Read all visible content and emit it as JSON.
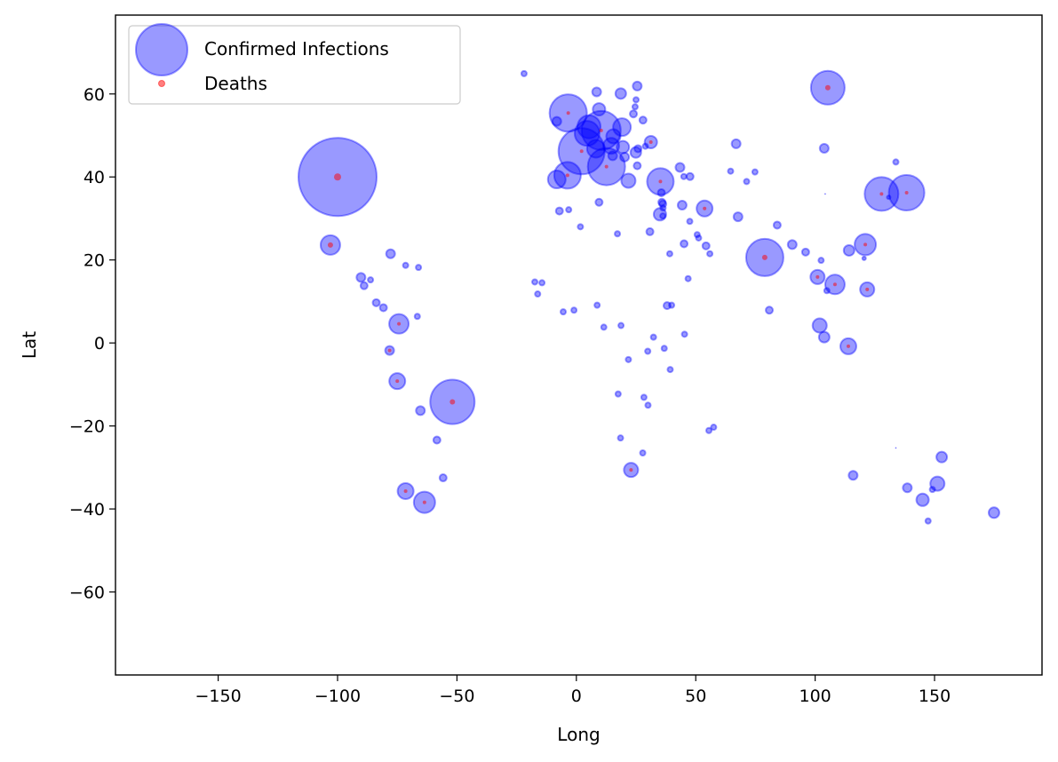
{
  "chart_data": {
    "type": "scatter",
    "xlabel": "Long",
    "ylabel": "Lat",
    "xlim": [
      -193,
      195
    ],
    "ylim": [
      -80,
      79
    ],
    "x_ticks": [
      -150,
      -100,
      -50,
      0,
      50,
      100,
      150
    ],
    "y_ticks": [
      -60,
      -40,
      -20,
      0,
      20,
      40,
      60
    ],
    "x_tick_labels": [
      "−150",
      "−100",
      "−50",
      "0",
      "50",
      "100",
      "150"
    ],
    "y_tick_labels": [
      "−60",
      "−40",
      "−20",
      "0",
      "20",
      "40",
      "60"
    ],
    "grid": false,
    "legend_position": "top-left",
    "series": [
      {
        "name": "Confirmed Infections",
        "color": "#0000ff",
        "alpha": 0.4,
        "points": [
          [
            -100,
            40,
            44
          ],
          [
            -103,
            23.6,
            11
          ],
          [
            -51.9,
            -14.2,
            25
          ],
          [
            -71.5,
            -35.7,
            9
          ],
          [
            -63.6,
            -38.4,
            12
          ],
          [
            -75,
            -9.2,
            9
          ],
          [
            -74.3,
            4.6,
            11
          ],
          [
            -78.2,
            -1.8,
            5
          ],
          [
            -77.8,
            21.5,
            5
          ],
          [
            -65.3,
            -16.3,
            5
          ],
          [
            -58.4,
            -23.4,
            4
          ],
          [
            -55.8,
            -32.5,
            4
          ],
          [
            -66.6,
            6.4,
            3
          ],
          [
            -86.2,
            15.2,
            3
          ],
          [
            -80.8,
            8.5,
            4
          ],
          [
            -83.8,
            9.7,
            4
          ],
          [
            -71.5,
            18.7,
            3
          ],
          [
            -88.9,
            13.8,
            4
          ],
          [
            -90.2,
            15.8,
            5
          ],
          [
            -66.1,
            18.2,
            3
          ],
          [
            -3.7,
            40.4,
            15
          ],
          [
            -8.2,
            39.4,
            10
          ],
          [
            -3.4,
            55.4,
            21
          ],
          [
            2.2,
            46.2,
            26
          ],
          [
            4.5,
            50.5,
            14
          ],
          [
            5.3,
            52.1,
            13
          ],
          [
            10.4,
            51.2,
            22
          ],
          [
            12.6,
            42.5,
            21
          ],
          [
            8.2,
            46.8,
            10
          ],
          [
            14.6,
            47.5,
            9
          ],
          [
            19.1,
            52,
            10
          ],
          [
            15.5,
            49.8,
            8
          ],
          [
            19.5,
            47.2,
            7
          ],
          [
            18.6,
            60.1,
            6
          ],
          [
            8.5,
            60.5,
            5
          ],
          [
            9.5,
            56.3,
            7
          ],
          [
            25,
            58.6,
            3
          ],
          [
            24.6,
            56.9,
            3
          ],
          [
            23.9,
            55.2,
            4
          ],
          [
            27.9,
            53.7,
            4
          ],
          [
            25.5,
            61.9,
            5
          ],
          [
            -8.2,
            53.4,
            5
          ],
          [
            -7.1,
            31.8,
            4
          ],
          [
            21.8,
            39.1,
            8
          ],
          [
            25.5,
            42.7,
            4
          ],
          [
            20.2,
            44.8,
            5
          ],
          [
            15.2,
            45.1,
            5
          ],
          [
            24.9,
            45.9,
            6
          ],
          [
            31.2,
            48.4,
            7
          ],
          [
            35.2,
            38.9,
            15
          ],
          [
            35,
            31,
            7
          ],
          [
            35.8,
            33.9,
            4
          ],
          [
            30.8,
            26.8,
            4
          ],
          [
            36.2,
            33.5,
            4
          ],
          [
            36.2,
            30.6,
            3
          ],
          [
            44.3,
            33.2,
            5
          ],
          [
            43.4,
            42.3,
            5
          ],
          [
            45,
            40.1,
            3
          ],
          [
            47.6,
            40.1,
            4
          ],
          [
            53.7,
            32.4,
            9
          ],
          [
            54.3,
            23.4,
            4
          ],
          [
            45.1,
            23.9,
            4
          ],
          [
            51.2,
            25.3,
            3
          ],
          [
            50.6,
            26.1,
            3
          ],
          [
            47.5,
            29.3,
            3
          ],
          [
            55.9,
            21.5,
            3
          ],
          [
            66.9,
            48,
            5
          ],
          [
            67.7,
            30.4,
            5
          ],
          [
            78.9,
            20.6,
            21
          ],
          [
            84.1,
            28.4,
            4
          ],
          [
            90.4,
            23.7,
            5
          ],
          [
            80.8,
            7.9,
            4
          ],
          [
            101,
            15.9,
            8
          ],
          [
            108.3,
            14.1,
            11
          ],
          [
            101.9,
            4.2,
            8
          ],
          [
            103.8,
            1.4,
            6
          ],
          [
            113.9,
            -0.8,
            9
          ],
          [
            121.8,
            12.9,
            8
          ],
          [
            121,
            23.7,
            12
          ],
          [
            114.2,
            22.3,
            6
          ],
          [
            104.2,
            35.9,
            0
          ],
          [
            105.3,
            61.5,
            19
          ],
          [
            103.8,
            46.9,
            5
          ],
          [
            127.8,
            35.9,
            19
          ],
          [
            138.3,
            36.2,
            20
          ],
          [
            96,
            21.9,
            4
          ],
          [
            104.9,
            12.6,
            3
          ],
          [
            102.5,
            19.9,
            3
          ],
          [
            133.8,
            -25.3,
            0
          ],
          [
            151.2,
            -33.9,
            8
          ],
          [
            145,
            -37.8,
            7
          ],
          [
            153,
            -27.5,
            6
          ],
          [
            138.6,
            -34.9,
            5
          ],
          [
            115.9,
            -31.9,
            5
          ],
          [
            147.3,
            -42.9,
            3
          ],
          [
            149.1,
            -35.3,
            3
          ],
          [
            174.9,
            -40.9,
            6
          ],
          [
            22.9,
            -30.6,
            8
          ],
          [
            36.8,
            -1.3,
            3
          ],
          [
            39.3,
            -6.4,
            3
          ],
          [
            38,
            9,
            4
          ],
          [
            32.3,
            1.4,
            3
          ],
          [
            29.9,
            -2,
            3
          ],
          [
            30,
            -15,
            3
          ],
          [
            28.3,
            -13.1,
            3
          ],
          [
            27.8,
            -26.5,
            3
          ],
          [
            18.5,
            -22.9,
            3
          ],
          [
            17.5,
            -12.3,
            3
          ],
          [
            21.8,
            -4,
            3
          ],
          [
            8.7,
            9.1,
            3
          ],
          [
            -1.0,
            7.9,
            3
          ],
          [
            -5.5,
            7.5,
            3
          ],
          [
            -14.4,
            14.5,
            3
          ],
          [
            -17.4,
            14.7,
            3
          ],
          [
            11.5,
            3.8,
            3
          ],
          [
            18.7,
            4.2,
            3
          ],
          [
            9.5,
            33.9,
            4
          ],
          [
            1.7,
            28,
            3
          ],
          [
            17.2,
            26.3,
            3
          ],
          [
            25.8,
            46.8,
            4
          ],
          [
            28.9,
            47.4,
            3
          ],
          [
            39.9,
            9.1,
            3
          ],
          [
            45.3,
            2.1,
            3
          ],
          [
            46.8,
            15.5,
            3
          ],
          [
            39.1,
            21.5,
            3
          ],
          [
            57.5,
            -20.3,
            3
          ],
          [
            55.5,
            -21.1,
            3
          ],
          [
            -21.9,
            64.9,
            3
          ],
          [
            -16.2,
            11.8,
            3
          ],
          [
            -3.2,
            32.1,
            3
          ],
          [
            36.3,
            32.5,
            3
          ],
          [
            35.6,
            36.2,
            4
          ],
          [
            64.6,
            41.4,
            3
          ],
          [
            74.8,
            41.2,
            3
          ],
          [
            71.3,
            38.9,
            3
          ],
          [
            133.8,
            43.6,
            3
          ],
          [
            120.5,
            20.4,
            2
          ],
          [
            130.8,
            35.1,
            2
          ]
        ]
      },
      {
        "name": "Deaths",
        "color": "#ff0000",
        "alpha": 0.5,
        "points": [
          [
            -100,
            40,
            4
          ],
          [
            -103,
            23.6,
            3
          ],
          [
            -51.9,
            -14.2,
            3
          ],
          [
            -71.5,
            -35.7,
            2
          ],
          [
            -63.6,
            -38.4,
            2
          ],
          [
            -75,
            -9.2,
            2
          ],
          [
            -74.3,
            4.6,
            2
          ],
          [
            -78.2,
            -1.8,
            2
          ],
          [
            -3.4,
            55.4,
            2
          ],
          [
            2.2,
            46.2,
            2
          ],
          [
            10.4,
            51.2,
            2
          ],
          [
            12.6,
            42.5,
            2
          ],
          [
            35.2,
            38.9,
            2
          ],
          [
            53.7,
            32.4,
            2
          ],
          [
            78.9,
            20.6,
            3
          ],
          [
            105.3,
            61.5,
            3
          ],
          [
            101,
            15.9,
            2
          ],
          [
            108.3,
            14.1,
            2
          ],
          [
            113.9,
            -0.8,
            2
          ],
          [
            121.8,
            12.9,
            2
          ],
          [
            121,
            23.7,
            2
          ],
          [
            127.8,
            35.9,
            2
          ],
          [
            138.3,
            36.2,
            2
          ],
          [
            22.9,
            -30.6,
            2
          ],
          [
            31.2,
            48.4,
            2
          ],
          [
            -3.7,
            40.4,
            2
          ]
        ]
      }
    ]
  }
}
